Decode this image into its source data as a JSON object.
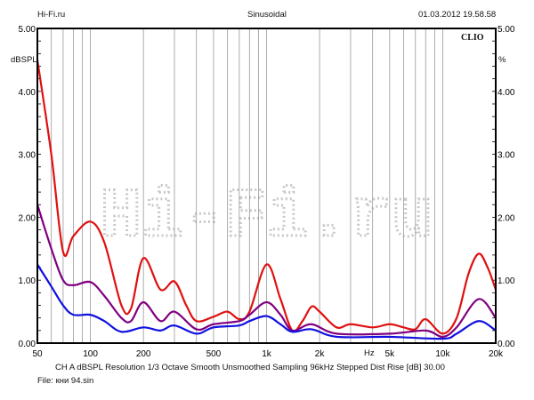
{
  "header": {
    "left": "Hi-Fi.ru",
    "center": "Sinusoidal",
    "right": "01.03.2012 19.58.58"
  },
  "brand": "CLIO",
  "watermark": "Hi-Fi.ru",
  "footer": {
    "settings": "CH A   dBSPL   Resolution 1/3 Octave   Smooth Unsmoothed   Sampling 96kHz   Stepped   Dist Rise [dB] 30.00",
    "file": "File: кни 94.sin"
  },
  "chart_data": {
    "type": "line",
    "title": "Sinusoidal",
    "ylabel": "dBSPL",
    "y2label": "%",
    "xunit": "Hz",
    "xscale": "log",
    "xlim": [
      50,
      20000
    ],
    "ylim": [
      0,
      5
    ],
    "xticks": [
      50,
      100,
      200,
      500,
      1000,
      2000,
      5000,
      10000,
      20000
    ],
    "xtick_labels": [
      "50",
      "100",
      "200",
      "500",
      "1k",
      "2k",
      "5k",
      "10k",
      "20k"
    ],
    "yticks": [
      "0.00",
      "1.00",
      "2.00",
      "3.00",
      "4.00",
      "5.00"
    ],
    "grid": true,
    "series": [
      {
        "name": "red",
        "color": "#e01010",
        "points": [
          [
            50,
            4.5
          ],
          [
            60,
            3.0
          ],
          [
            70,
            1.45
          ],
          [
            80,
            1.7
          ],
          [
            100,
            1.93
          ],
          [
            120,
            1.6
          ],
          [
            150,
            0.6
          ],
          [
            170,
            0.55
          ],
          [
            200,
            1.35
          ],
          [
            250,
            0.85
          ],
          [
            300,
            0.98
          ],
          [
            350,
            0.6
          ],
          [
            400,
            0.35
          ],
          [
            500,
            0.42
          ],
          [
            600,
            0.5
          ],
          [
            700,
            0.38
          ],
          [
            800,
            0.5
          ],
          [
            1000,
            1.25
          ],
          [
            1200,
            0.7
          ],
          [
            1400,
            0.2
          ],
          [
            1600,
            0.35
          ],
          [
            1800,
            0.58
          ],
          [
            2000,
            0.5
          ],
          [
            2500,
            0.25
          ],
          [
            3000,
            0.3
          ],
          [
            4000,
            0.25
          ],
          [
            5000,
            0.3
          ],
          [
            6000,
            0.25
          ],
          [
            7000,
            0.22
          ],
          [
            8000,
            0.38
          ],
          [
            10000,
            0.15
          ],
          [
            12000,
            0.4
          ],
          [
            14000,
            1.1
          ],
          [
            16000,
            1.42
          ],
          [
            18000,
            1.2
          ],
          [
            20000,
            0.85
          ]
        ]
      },
      {
        "name": "purple",
        "color": "#800080",
        "points": [
          [
            50,
            2.2
          ],
          [
            60,
            1.5
          ],
          [
            70,
            1.0
          ],
          [
            80,
            0.92
          ],
          [
            100,
            0.97
          ],
          [
            120,
            0.75
          ],
          [
            150,
            0.4
          ],
          [
            170,
            0.35
          ],
          [
            200,
            0.65
          ],
          [
            250,
            0.35
          ],
          [
            300,
            0.5
          ],
          [
            400,
            0.22
          ],
          [
            500,
            0.3
          ],
          [
            700,
            0.35
          ],
          [
            800,
            0.45
          ],
          [
            1000,
            0.65
          ],
          [
            1200,
            0.45
          ],
          [
            1400,
            0.2
          ],
          [
            1800,
            0.3
          ],
          [
            2500,
            0.15
          ],
          [
            5000,
            0.15
          ],
          [
            8000,
            0.2
          ],
          [
            10000,
            0.1
          ],
          [
            12000,
            0.25
          ],
          [
            16000,
            0.7
          ],
          [
            20000,
            0.4
          ]
        ]
      },
      {
        "name": "blue",
        "color": "#1010e0",
        "points": [
          [
            50,
            1.25
          ],
          [
            60,
            0.9
          ],
          [
            70,
            0.6
          ],
          [
            80,
            0.45
          ],
          [
            100,
            0.45
          ],
          [
            120,
            0.35
          ],
          [
            150,
            0.18
          ],
          [
            200,
            0.25
          ],
          [
            250,
            0.2
          ],
          [
            300,
            0.28
          ],
          [
            400,
            0.15
          ],
          [
            500,
            0.25
          ],
          [
            700,
            0.28
          ],
          [
            800,
            0.35
          ],
          [
            1000,
            0.43
          ],
          [
            1200,
            0.3
          ],
          [
            1400,
            0.18
          ],
          [
            1800,
            0.22
          ],
          [
            2500,
            0.1
          ],
          [
            5000,
            0.1
          ],
          [
            10000,
            0.07
          ],
          [
            12000,
            0.15
          ],
          [
            16000,
            0.35
          ],
          [
            20000,
            0.2
          ]
        ]
      }
    ]
  }
}
